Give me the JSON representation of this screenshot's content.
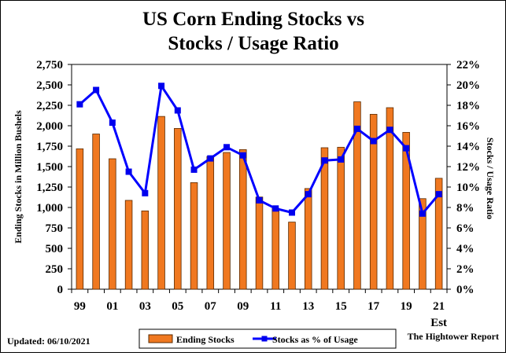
{
  "footer": {
    "updated": "Updated: 06/10/2021",
    "source": "The Hightower Report"
  },
  "chart_data": {
    "type": "bar+line",
    "title_line1": "US Corn Ending Stocks vs",
    "title_line2": "Stocks / Usage Ratio",
    "ylabel_left": "Ending Stocks in Million Bushels",
    "ylabel_right": "Stocks / Usage Ratio",
    "ylim_left": [
      0,
      2750
    ],
    "yticks_left": [
      0,
      250,
      500,
      750,
      1000,
      1250,
      1500,
      1750,
      2000,
      2250,
      2500,
      2750
    ],
    "ytick_labels_left": [
      "0",
      "250",
      "500",
      "750",
      "1,000",
      "1,250",
      "1,500",
      "1,750",
      "2,000",
      "2,250",
      "2,500",
      "2,750"
    ],
    "ylim_right": [
      0,
      22
    ],
    "yticks_right": [
      0,
      2,
      4,
      6,
      8,
      10,
      12,
      14,
      16,
      18,
      20,
      22
    ],
    "ytick_labels_right": [
      "0%",
      "2%",
      "4%",
      "6%",
      "8%",
      "10%",
      "12%",
      "14%",
      "16%",
      "18%",
      "20%",
      "22%"
    ],
    "x_tick_labels": [
      "99",
      "01",
      "03",
      "05",
      "07",
      "09",
      "11",
      "13",
      "15",
      "17",
      "19",
      "21"
    ],
    "x_tick_sublabel": "Est",
    "grid": false,
    "legend_position": "bottom",
    "colors": {
      "bars": "#f07820",
      "bar_edge": "#5a2a00",
      "line": "#0000ff",
      "marker": "#0000ee"
    },
    "series": [
      {
        "name": "Ending Stocks",
        "axis": "left",
        "type": "bar",
        "values": [
          1718,
          1899,
          1596,
          1087,
          958,
          2114,
          1967,
          1304,
          1624,
          1673,
          1708,
          1128,
          989,
          821,
          1232,
          1731,
          1737,
          2293,
          2140,
          2221,
          1919,
          1108,
          1357
        ]
      },
      {
        "name": "Stocks as % of Usage",
        "axis": "right",
        "type": "line",
        "values": [
          18.1,
          19.5,
          16.3,
          11.5,
          9.4,
          19.9,
          17.5,
          11.7,
          12.8,
          13.9,
          13.1,
          8.7,
          7.9,
          7.5,
          9.3,
          12.6,
          12.7,
          15.7,
          14.5,
          15.6,
          13.8,
          7.4,
          9.3
        ]
      }
    ]
  }
}
